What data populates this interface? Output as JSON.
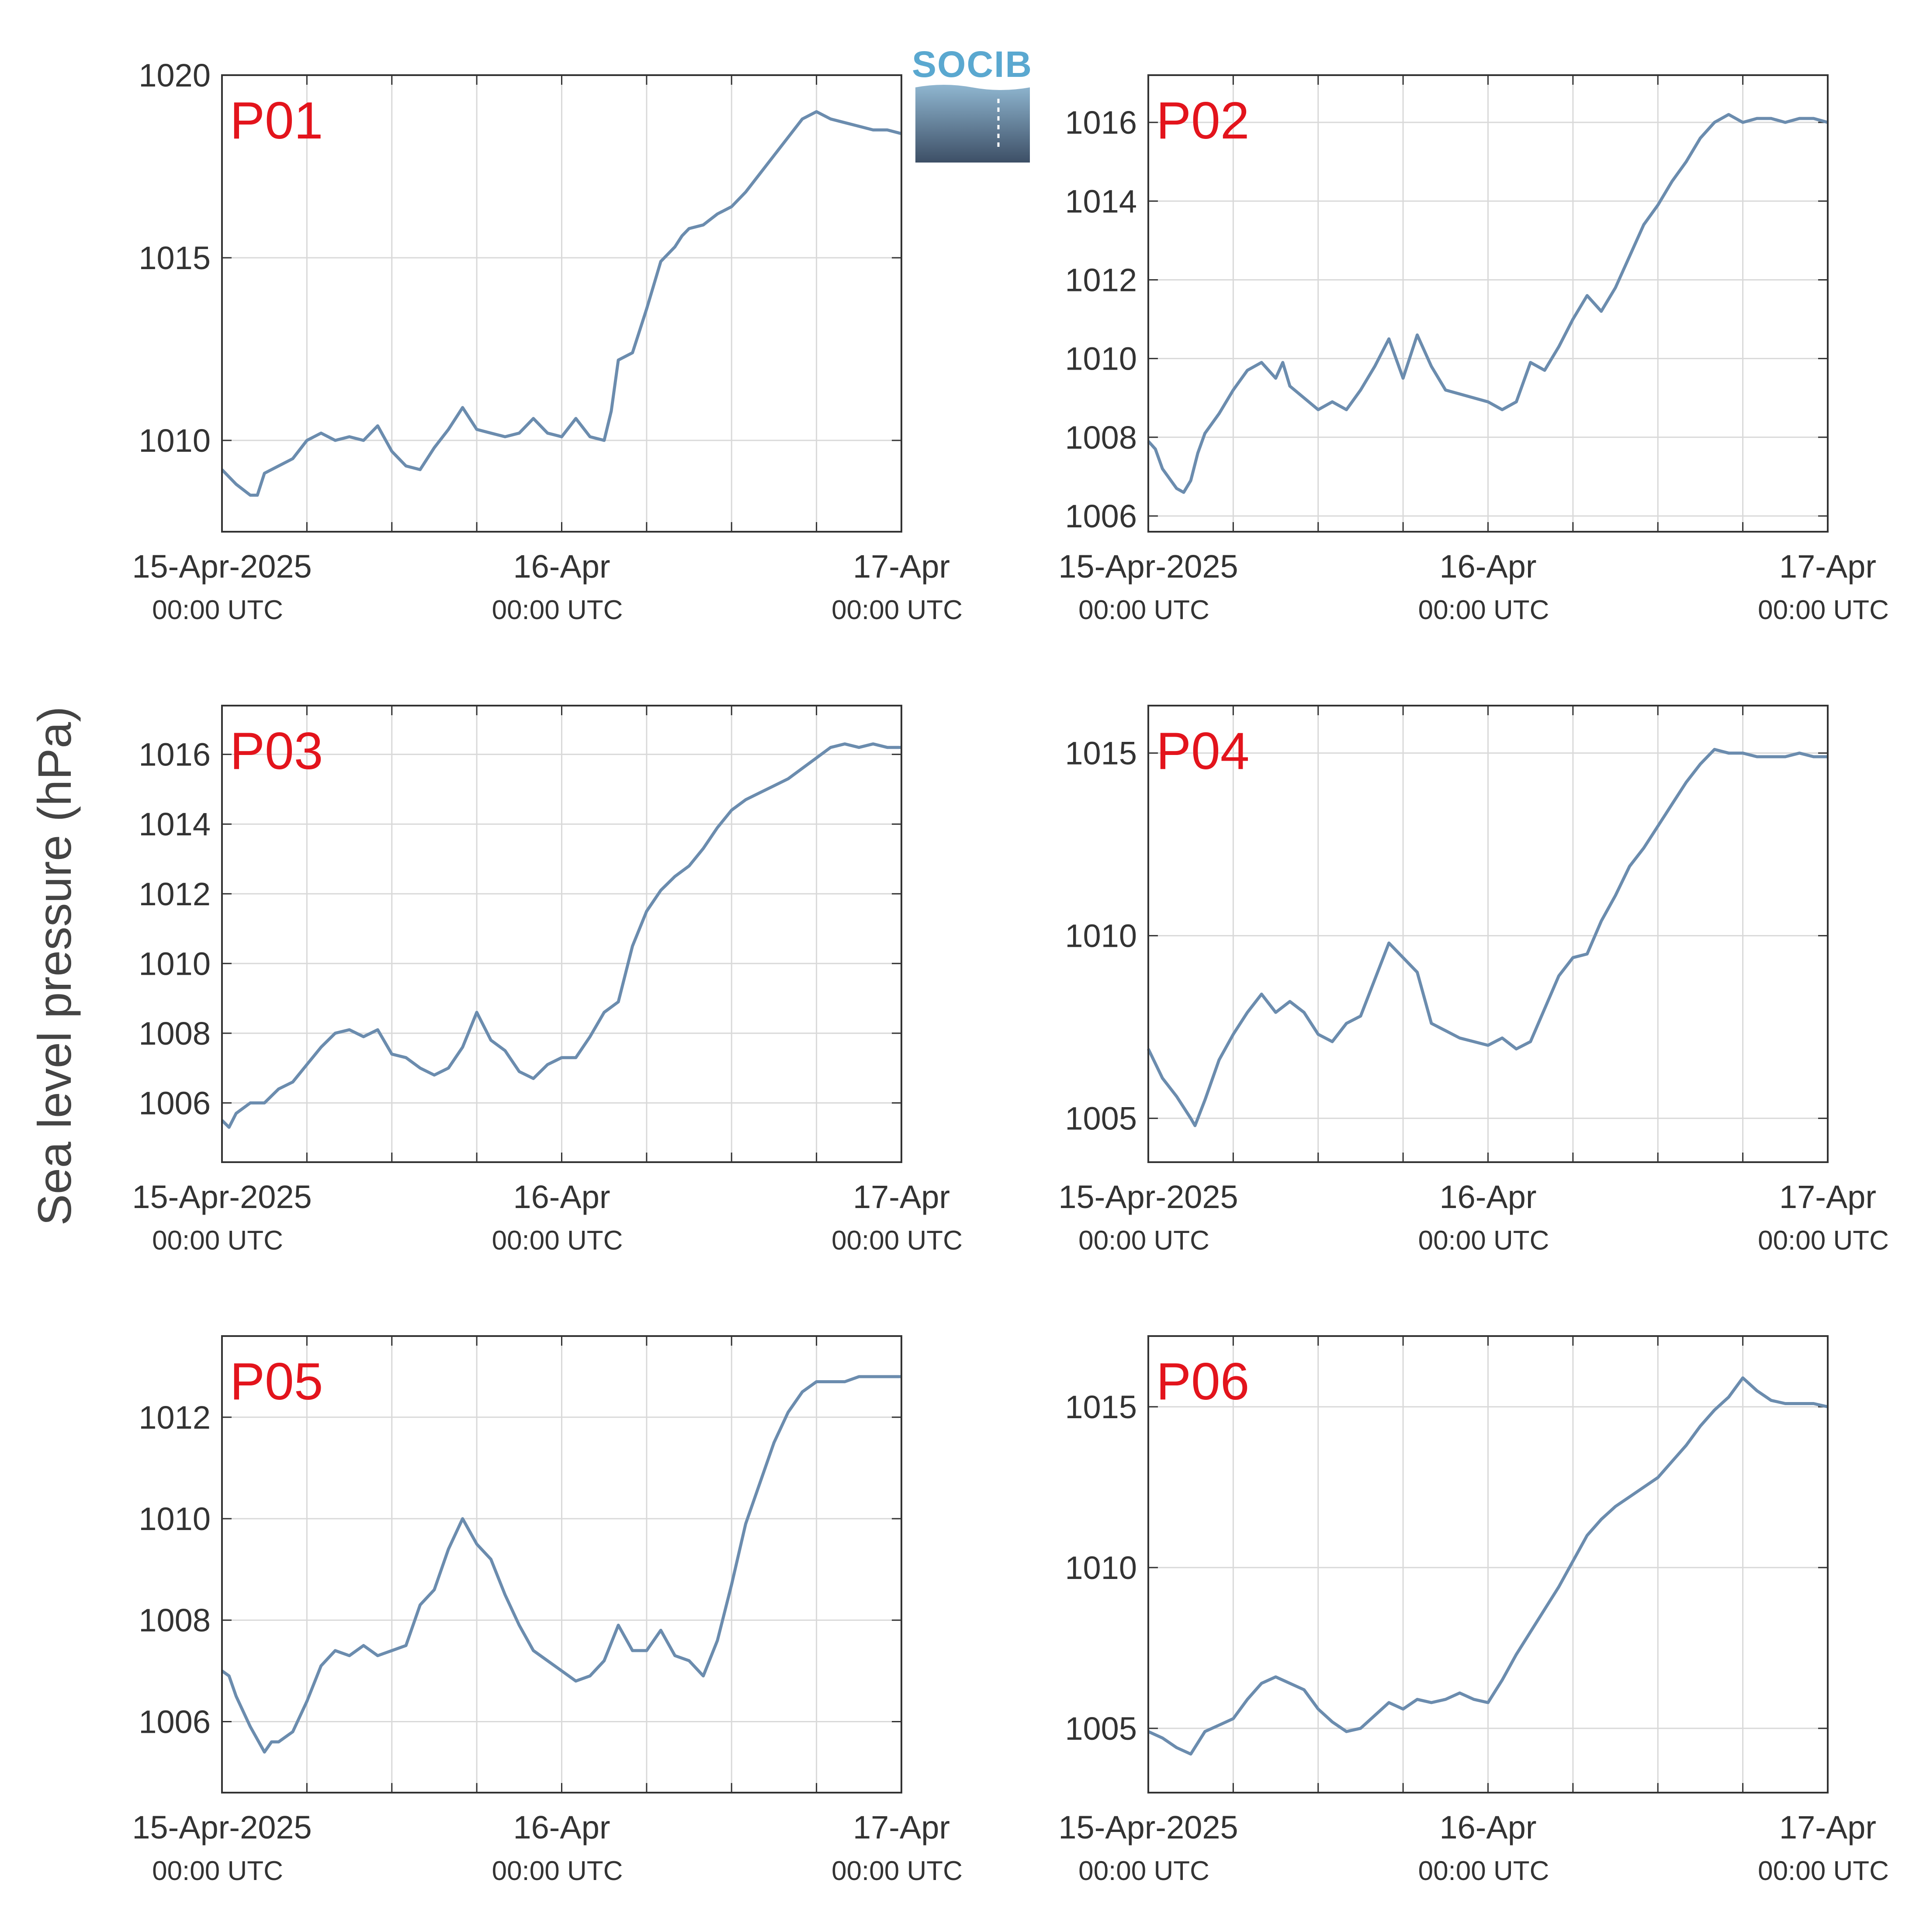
{
  "figure": {
    "ylabel": "Sea level pressure (hPa)",
    "logo_text": "SOCIB",
    "line_color": "#6b8cae",
    "label_color": "#e3141c",
    "grid_color": "#d9d9d9"
  },
  "chart_data": [
    {
      "type": "line",
      "panel": "P01",
      "x_labels": [
        {
          "x": 0,
          "line1": "15-Apr-2025",
          "line2": "00:00 UTC"
        },
        {
          "x": 24,
          "line1": "16-Apr",
          "line2": "00:00 UTC"
        },
        {
          "x": 48,
          "line1": "17-Apr",
          "line2": "00:00 UTC"
        }
      ],
      "xlim": [
        0,
        48
      ],
      "ylim": [
        1007.5,
        1020
      ],
      "yticks": [
        1010,
        1015,
        1020
      ],
      "series": [
        {
          "x": [
            0,
            1,
            2,
            2.5,
            3,
            4,
            5,
            6,
            7,
            8,
            9,
            10,
            11,
            12,
            13,
            14,
            15,
            16,
            17,
            18,
            19,
            20,
            21,
            22,
            23,
            24,
            25,
            26,
            27,
            27.5,
            28,
            29,
            30,
            31,
            32,
            32.5,
            33,
            34,
            35,
            36,
            37,
            38,
            39,
            40,
            41,
            42,
            43,
            44,
            45,
            46,
            46.5,
            47,
            48
          ],
          "y": [
            1009.2,
            1008.8,
            1008.5,
            1008.5,
            1009.1,
            1009.3,
            1009.5,
            1010.0,
            1010.2,
            1010.0,
            1010.1,
            1010.0,
            1010.4,
            1009.7,
            1009.3,
            1009.2,
            1009.8,
            1010.3,
            1010.9,
            1010.3,
            1010.2,
            1010.1,
            1010.2,
            1010.6,
            1010.2,
            1010.1,
            1010.6,
            1010.1,
            1010.0,
            1010.8,
            1012.2,
            1012.4,
            1013.6,
            1014.9,
            1015.3,
            1015.6,
            1015.8,
            1015.9,
            1016.2,
            1016.4,
            1016.8,
            1017.3,
            1017.8,
            1018.3,
            1018.8,
            1019.0,
            1018.8,
            1018.7,
            1018.6,
            1018.5,
            1018.5,
            1018.5,
            1018.4
          ]
        }
      ]
    },
    {
      "type": "line",
      "panel": "P02",
      "x_labels": [
        {
          "x": 0,
          "line1": "15-Apr-2025",
          "line2": "00:00 UTC"
        },
        {
          "x": 24,
          "line1": "16-Apr",
          "line2": "00:00 UTC"
        },
        {
          "x": 48,
          "line1": "17-Apr",
          "line2": "00:00 UTC"
        }
      ],
      "xlim": [
        0,
        48
      ],
      "ylim": [
        1005.6,
        1017.2
      ],
      "yticks": [
        1006,
        1008,
        1010,
        1012,
        1014,
        1016
      ],
      "series": [
        {
          "x": [
            0,
            0.5,
            1,
            2,
            2.5,
            3,
            3.5,
            4,
            5,
            6,
            7,
            8,
            9,
            9.5,
            10,
            11,
            12,
            13,
            14,
            15,
            16,
            17,
            18,
            19,
            20,
            21,
            22,
            23,
            24,
            25,
            26,
            27,
            28,
            29,
            30,
            31,
            32,
            33,
            34,
            35,
            36,
            37,
            38,
            39,
            40,
            41,
            42,
            43,
            44,
            45,
            46,
            47,
            48
          ],
          "y": [
            1007.9,
            1007.7,
            1007.2,
            1006.7,
            1006.6,
            1006.9,
            1007.6,
            1008.1,
            1008.6,
            1009.2,
            1009.7,
            1009.9,
            1009.5,
            1009.9,
            1009.3,
            1009.0,
            1008.7,
            1008.9,
            1008.7,
            1009.2,
            1009.8,
            1010.5,
            1009.5,
            1010.6,
            1009.8,
            1009.2,
            1009.1,
            1009.0,
            1008.9,
            1008.7,
            1008.9,
            1009.9,
            1009.7,
            1010.3,
            1011.0,
            1011.6,
            1011.2,
            1011.8,
            1012.6,
            1013.4,
            1013.9,
            1014.5,
            1015.0,
            1015.6,
            1016.0,
            1016.2,
            1016.0,
            1016.1,
            1016.1,
            1016.0,
            1016.1,
            1016.1,
            1016.0
          ]
        }
      ]
    },
    {
      "type": "line",
      "panel": "P03",
      "x_labels": [
        {
          "x": 0,
          "line1": "15-Apr-2025",
          "line2": "00:00 UTC"
        },
        {
          "x": 24,
          "line1": "16-Apr",
          "line2": "00:00 UTC"
        },
        {
          "x": 48,
          "line1": "17-Apr",
          "line2": "00:00 UTC"
        }
      ],
      "xlim": [
        0,
        48
      ],
      "ylim": [
        1004.3,
        1017.4
      ],
      "yticks": [
        1006,
        1008,
        1010,
        1012,
        1014,
        1016
      ],
      "series": [
        {
          "x": [
            0,
            0.5,
            1,
            2,
            3,
            4,
            5,
            6,
            7,
            8,
            9,
            10,
            11,
            12,
            13,
            14,
            15,
            16,
            17,
            18,
            19,
            20,
            21,
            22,
            23,
            24,
            25,
            26,
            27,
            28,
            29,
            30,
            31,
            32,
            33,
            34,
            35,
            36,
            37,
            38,
            39,
            40,
            41,
            42,
            43,
            44,
            45,
            46,
            47,
            48
          ],
          "y": [
            1005.5,
            1005.3,
            1005.7,
            1006.0,
            1006.0,
            1006.4,
            1006.6,
            1007.1,
            1007.6,
            1008.0,
            1008.1,
            1007.9,
            1008.1,
            1007.4,
            1007.3,
            1007.0,
            1006.8,
            1007.0,
            1007.6,
            1008.6,
            1007.8,
            1007.5,
            1006.9,
            1006.7,
            1007.1,
            1007.3,
            1007.3,
            1007.9,
            1008.6,
            1008.9,
            1010.5,
            1011.5,
            1012.1,
            1012.5,
            1012.8,
            1013.3,
            1013.9,
            1014.4,
            1014.7,
            1014.9,
            1015.1,
            1015.3,
            1015.6,
            1015.9,
            1016.2,
            1016.3,
            1016.2,
            1016.3,
            1016.2,
            1016.2
          ]
        }
      ]
    },
    {
      "type": "line",
      "panel": "P04",
      "x_labels": [
        {
          "x": 0,
          "line1": "15-Apr-2025",
          "line2": "00:00 UTC"
        },
        {
          "x": 24,
          "line1": "16-Apr",
          "line2": "00:00 UTC"
        },
        {
          "x": 48,
          "line1": "17-Apr",
          "line2": "00:00 UTC"
        }
      ],
      "xlim": [
        0,
        48
      ],
      "ylim": [
        1003.8,
        1016.3
      ],
      "yticks": [
        1005,
        1010,
        1015
      ],
      "series": [
        {
          "x": [
            0,
            1,
            2,
            3,
            3.3,
            4,
            5,
            6,
            7,
            8,
            9,
            10,
            11,
            12,
            13,
            14,
            15,
            16,
            17,
            18,
            19,
            20,
            21,
            22,
            23,
            24,
            25,
            26,
            27,
            28,
            29,
            30,
            31,
            32,
            33,
            34,
            35,
            36,
            37,
            38,
            39,
            40,
            41,
            42,
            43,
            44,
            45,
            46,
            47,
            48
          ],
          "y": [
            1006.9,
            1006.1,
            1005.6,
            1005.0,
            1004.8,
            1005.5,
            1006.6,
            1007.3,
            1007.9,
            1008.4,
            1007.9,
            1008.2,
            1007.9,
            1007.3,
            1007.1,
            1007.6,
            1007.8,
            1008.8,
            1009.8,
            1009.4,
            1009.0,
            1007.6,
            1007.4,
            1007.2,
            1007.1,
            1007.0,
            1007.2,
            1006.9,
            1007.1,
            1008.0,
            1008.9,
            1009.4,
            1009.5,
            1010.4,
            1011.1,
            1011.9,
            1012.4,
            1013.0,
            1013.6,
            1014.2,
            1014.7,
            1015.1,
            1015.0,
            1015.0,
            1014.9,
            1014.9,
            1014.9,
            1015.0,
            1014.9,
            1014.9
          ]
        }
      ]
    },
    {
      "type": "line",
      "panel": "P05",
      "x_labels": [
        {
          "x": 0,
          "line1": "15-Apr-2025",
          "line2": "00:00 UTC"
        },
        {
          "x": 24,
          "line1": "16-Apr",
          "line2": "00:00 UTC"
        },
        {
          "x": 48,
          "line1": "17-Apr",
          "line2": "00:00 UTC"
        }
      ],
      "xlim": [
        0,
        48
      ],
      "ylim": [
        1004.6,
        1013.6
      ],
      "yticks": [
        1006,
        1008,
        1010,
        1012
      ],
      "series": [
        {
          "x": [
            0,
            0.5,
            1,
            2,
            3,
            3.5,
            4,
            5,
            6,
            7,
            8,
            9,
            10,
            11,
            12,
            13,
            14,
            15,
            16,
            17,
            18,
            19,
            20,
            21,
            22,
            23,
            24,
            25,
            26,
            27,
            28,
            29,
            30,
            31,
            32,
            33,
            34,
            35,
            36,
            37,
            38,
            39,
            40,
            41,
            42,
            43,
            44,
            45,
            46,
            47,
            48
          ],
          "y": [
            1007.0,
            1006.9,
            1006.5,
            1005.9,
            1005.4,
            1005.6,
            1005.6,
            1005.8,
            1006.4,
            1007.1,
            1007.4,
            1007.3,
            1007.5,
            1007.3,
            1007.4,
            1007.5,
            1008.3,
            1008.6,
            1009.4,
            1010.0,
            1009.5,
            1009.2,
            1008.5,
            1007.9,
            1007.4,
            1007.2,
            1007.0,
            1006.8,
            1006.9,
            1007.2,
            1007.9,
            1007.4,
            1007.4,
            1007.8,
            1007.3,
            1007.2,
            1006.9,
            1007.6,
            1008.7,
            1009.9,
            1010.7,
            1011.5,
            1012.1,
            1012.5,
            1012.7,
            1012.7,
            1012.7,
            1012.8,
            1012.8,
            1012.8,
            1012.8
          ]
        }
      ]
    },
    {
      "type": "line",
      "panel": "P06",
      "x_labels": [
        {
          "x": 0,
          "line1": "15-Apr-2025",
          "line2": "00:00 UTC"
        },
        {
          "x": 24,
          "line1": "16-Apr",
          "line2": "00:00 UTC"
        },
        {
          "x": 48,
          "line1": "17-Apr",
          "line2": "00:00 UTC"
        }
      ],
      "xlim": [
        0,
        48
      ],
      "ylim": [
        1003.0,
        1017.2
      ],
      "yticks": [
        1005,
        1010,
        1015
      ],
      "series": [
        {
          "x": [
            0,
            1,
            2,
            3,
            4,
            5,
            6,
            7,
            8,
            9,
            10,
            11,
            12,
            13,
            14,
            15,
            16,
            17,
            18,
            19,
            20,
            21,
            22,
            23,
            24,
            25,
            26,
            27,
            28,
            29,
            30,
            31,
            32,
            33,
            34,
            35,
            36,
            37,
            38,
            39,
            40,
            41,
            42,
            43,
            44,
            45,
            46,
            47,
            48
          ],
          "y": [
            1004.9,
            1004.7,
            1004.4,
            1004.2,
            1004.9,
            1005.1,
            1005.3,
            1005.9,
            1006.4,
            1006.6,
            1006.4,
            1006.2,
            1005.6,
            1005.2,
            1004.9,
            1005.0,
            1005.4,
            1005.8,
            1005.6,
            1005.9,
            1005.8,
            1005.9,
            1006.1,
            1005.9,
            1005.8,
            1006.5,
            1007.3,
            1008.0,
            1008.7,
            1009.4,
            1010.2,
            1011.0,
            1011.5,
            1011.9,
            1012.2,
            1012.5,
            1012.8,
            1013.3,
            1013.8,
            1014.4,
            1014.9,
            1015.3,
            1015.9,
            1015.5,
            1015.2,
            1015.1,
            1015.1,
            1015.1,
            1015.0
          ]
        }
      ]
    }
  ]
}
